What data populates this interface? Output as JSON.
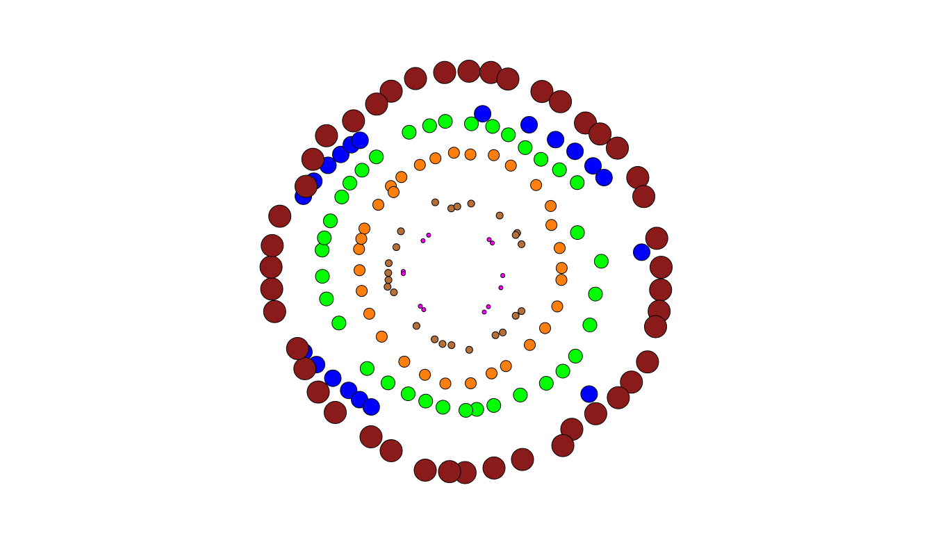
{
  "chart_data": {
    "type": "scatter",
    "title": "",
    "xlabel": "",
    "ylabel": "",
    "axes_visible": false,
    "grid": false,
    "legend": "none",
    "aspect": "equal",
    "xlim": [
      -1.0,
      1.0
    ],
    "ylim": [
      -1.0,
      1.0
    ],
    "series": [
      {
        "color": "#ff00ff",
        "marker_size": 3,
        "points": [
          [
            -0.166,
            0.176
          ],
          [
            -0.189,
            0.153
          ],
          [
            -0.27,
            0.027
          ],
          [
            -0.27,
            0.018
          ],
          [
            -0.2,
            -0.116
          ],
          [
            -0.186,
            -0.13
          ],
          [
            0.083,
            0.158
          ],
          [
            0.096,
            0.144
          ],
          [
            0.139,
            0.01
          ],
          [
            0.131,
            -0.04
          ],
          [
            0.08,
            -0.118
          ],
          [
            0.063,
            -0.14
          ]
        ]
      },
      {
        "color": "#b5703a",
        "marker_size": 5,
        "points": [
          [
            -0.139,
            0.311
          ],
          [
            -0.073,
            0.286
          ],
          [
            -0.048,
            0.294
          ],
          [
            0.009,
            0.306
          ],
          [
            0.126,
            0.257
          ],
          [
            0.198,
            0.185
          ],
          [
            0.216,
            0.139
          ],
          [
            0.192,
            0.177
          ],
          [
            -0.28,
            0.192
          ],
          [
            -0.299,
            0.127
          ],
          [
            -0.33,
            0.061
          ],
          [
            -0.332,
            0.021
          ],
          [
            -0.331,
            -0.008
          ],
          [
            -0.335,
            -0.036
          ],
          [
            -0.309,
            -0.059
          ],
          [
            -0.216,
            -0.197
          ],
          [
            -0.141,
            -0.252
          ],
          [
            -0.109,
            -0.271
          ],
          [
            -0.072,
            -0.276
          ],
          [
            0.001,
            -0.295
          ],
          [
            0.109,
            -0.235
          ],
          [
            0.192,
            -0.155
          ],
          [
            0.216,
            -0.136
          ],
          [
            0.139,
            -0.224
          ]
        ]
      },
      {
        "color": "#ff7f0e",
        "marker_size": 8,
        "points": [
          [
            -0.202,
            0.465
          ],
          [
            -0.138,
            0.492
          ],
          [
            -0.062,
            0.515
          ],
          [
            0.006,
            0.508
          ],
          [
            0.102,
            0.505
          ],
          [
            0.172,
            0.462
          ],
          [
            0.276,
            0.382
          ],
          [
            0.336,
            0.296
          ],
          [
            0.339,
            0.218
          ],
          [
            0.373,
            0.123
          ],
          [
            0.381,
            0.041
          ],
          [
            0.38,
            -0.008
          ],
          [
            0.363,
            -0.117
          ],
          [
            0.313,
            -0.206
          ],
          [
            0.25,
            -0.275
          ],
          [
            0.152,
            -0.362
          ],
          [
            0.093,
            -0.392
          ],
          [
            0.007,
            -0.433
          ],
          [
            -0.097,
            -0.434
          ],
          [
            -0.181,
            -0.398
          ],
          [
            -0.266,
            -0.344
          ],
          [
            -0.359,
            -0.241
          ],
          [
            -0.41,
            -0.147
          ],
          [
            -0.441,
            -0.053
          ],
          [
            -0.45,
            0.032
          ],
          [
            -0.452,
            0.119
          ],
          [
            -0.43,
            0.203
          ],
          [
            -0.373,
            0.301
          ],
          [
            -0.321,
            0.378
          ],
          [
            -0.278,
            0.415
          ],
          [
            -0.31,
            0.353
          ],
          [
            -0.443,
            0.161
          ]
        ]
      },
      {
        "color": "#00ff00",
        "marker_size": 10,
        "points": [
          [
            -0.246,
            0.599
          ],
          [
            -0.162,
            0.626
          ],
          [
            -0.097,
            0.644
          ],
          [
            0.01,
            0.634
          ],
          [
            0.097,
            0.623
          ],
          [
            0.162,
            0.589
          ],
          [
            0.231,
            0.536
          ],
          [
            0.296,
            0.488
          ],
          [
            0.372,
            0.445
          ],
          [
            0.445,
            0.392
          ],
          [
            0.446,
            0.187
          ],
          [
            0.544,
            0.069
          ],
          [
            0.52,
            -0.066
          ],
          [
            0.497,
            -0.193
          ],
          [
            0.438,
            -0.321
          ],
          [
            0.386,
            -0.383
          ],
          [
            0.318,
            -0.433
          ],
          [
            0.211,
            -0.481
          ],
          [
            0.102,
            -0.524
          ],
          [
            0.032,
            -0.54
          ],
          [
            -0.013,
            -0.544
          ],
          [
            -0.107,
            -0.531
          ],
          [
            -0.178,
            -0.506
          ],
          [
            -0.25,
            -0.476
          ],
          [
            -0.333,
            -0.431
          ],
          [
            -0.419,
            -0.372
          ],
          [
            -0.535,
            -0.185
          ],
          [
            -0.586,
            -0.086
          ],
          [
            -0.603,
            0.007
          ],
          [
            -0.604,
            0.115
          ],
          [
            -0.57,
            0.235
          ],
          [
            -0.523,
            0.333
          ],
          [
            -0.44,
            0.443
          ],
          [
            -0.381,
            0.498
          ],
          [
            -0.49,
            0.39
          ],
          [
            -0.595,
            0.165
          ]
        ]
      },
      {
        "color": "#0000ff",
        "marker_size": 12,
        "points": [
          [
            0.056,
            0.675
          ],
          [
            0.247,
            0.63
          ],
          [
            0.356,
            0.569
          ],
          [
            0.436,
            0.521
          ],
          [
            0.51,
            0.461
          ],
          [
            0.555,
            0.413
          ],
          [
            0.71,
            0.106
          ],
          [
            0.494,
            -0.477
          ],
          [
            -0.679,
            -0.304
          ],
          [
            -0.627,
            -0.356
          ],
          [
            -0.56,
            -0.412
          ],
          [
            -0.495,
            -0.462
          ],
          [
            -0.45,
            -0.5
          ],
          [
            -0.402,
            -0.53
          ],
          [
            -0.638,
            0.398
          ],
          [
            -0.58,
            0.463
          ],
          [
            -0.527,
            0.508
          ],
          [
            -0.484,
            0.548
          ],
          [
            -0.448,
            0.566
          ],
          [
            -0.681,
            0.336
          ]
        ]
      },
      {
        "color": "#8b1a1a",
        "marker_size": 16,
        "points": [
          [
            -0.32,
            0.768
          ],
          [
            -0.22,
            0.82
          ],
          [
            -0.1,
            0.845
          ],
          [
            0.0,
            0.85
          ],
          [
            0.09,
            0.845
          ],
          [
            0.16,
            0.818
          ],
          [
            0.3,
            0.767
          ],
          [
            0.376,
            0.725
          ],
          [
            0.479,
            0.637
          ],
          [
            0.539,
            0.592
          ],
          [
            0.61,
            0.534
          ],
          [
            0.694,
            0.413
          ],
          [
            0.719,
            0.335
          ],
          [
            0.772,
            0.163
          ],
          [
            0.79,
            0.044
          ],
          [
            0.788,
            -0.049
          ],
          [
            0.782,
            -0.137
          ],
          [
            0.767,
            -0.2
          ],
          [
            0.734,
            -0.345
          ],
          [
            0.668,
            -0.428
          ],
          [
            0.614,
            -0.492
          ],
          [
            0.521,
            -0.558
          ],
          [
            0.423,
            -0.622
          ],
          [
            0.386,
            -0.689
          ],
          [
            0.22,
            -0.746
          ],
          [
            0.103,
            -0.781
          ],
          [
            -0.016,
            -0.8
          ],
          [
            -0.08,
            -0.796
          ],
          [
            -0.18,
            -0.79
          ],
          [
            -0.32,
            -0.71
          ],
          [
            -0.403,
            -0.653
          ],
          [
            -0.55,
            -0.553
          ],
          [
            -0.62,
            -0.469
          ],
          [
            -0.675,
            -0.373
          ],
          [
            -0.705,
            -0.29
          ],
          [
            -0.799,
            -0.138
          ],
          [
            -0.811,
            -0.045
          ],
          [
            -0.814,
            0.045
          ],
          [
            -0.809,
            0.133
          ],
          [
            -0.778,
            0.254
          ],
          [
            -0.67,
            0.377
          ],
          [
            -0.642,
            0.488
          ],
          [
            -0.586,
            0.585
          ],
          [
            -0.475,
            0.646
          ],
          [
            -0.38,
            0.715
          ]
        ]
      }
    ]
  }
}
